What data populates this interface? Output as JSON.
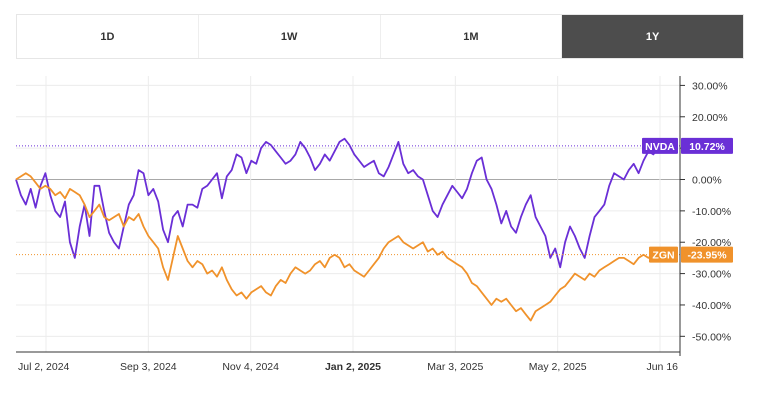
{
  "tabs": [
    {
      "label": "1D",
      "active": false
    },
    {
      "label": "1W",
      "active": false
    },
    {
      "label": "1M",
      "active": false
    },
    {
      "label": "1Y",
      "active": true
    }
  ],
  "chart_data": {
    "type": "line",
    "grid": true,
    "ylim": [
      -55,
      33
    ],
    "y_ticks": [
      "30.00%",
      "20.00%",
      "10.00%",
      "0.00%",
      "-10.00%",
      "-20.00%",
      "-30.00%",
      "-40.00%",
      "-50.00%"
    ],
    "x_ticks": [
      {
        "label": "Jul 2, 2024",
        "bold": false
      },
      {
        "label": "Sep 3, 2024",
        "bold": false
      },
      {
        "label": "Nov 4, 2024",
        "bold": false
      },
      {
        "label": "Jan 2, 2025",
        "bold": true
      },
      {
        "label": "Mar 3, 2025",
        "bold": false
      },
      {
        "label": "May 2, 2025",
        "bold": false
      },
      {
        "label": "Jun 16",
        "bold": false
      }
    ],
    "series": [
      {
        "name": "NVDA",
        "color": "#6a2fd6",
        "last_label": "10.72%",
        "values": [
          0,
          -5,
          -8,
          -3,
          -9,
          -2,
          2,
          -5,
          -10,
          -12,
          -7,
          -20,
          -25,
          -15,
          -8,
          -18,
          -2,
          -2,
          -10,
          -17,
          -20,
          -22,
          -15,
          -8,
          -5,
          3,
          2,
          -5,
          -3,
          -7,
          -16,
          -20,
          -12,
          -10,
          -15,
          -8,
          -8,
          -9,
          -3,
          -2,
          0,
          2,
          -6,
          1,
          3,
          8,
          7,
          2,
          6,
          5,
          10,
          12,
          11,
          9,
          7,
          5,
          6,
          8,
          12,
          10,
          7,
          3,
          5,
          8,
          6,
          9,
          12,
          13,
          11,
          8,
          6,
          4,
          5,
          6,
          2,
          1,
          4,
          8,
          12,
          5,
          2,
          3,
          1,
          0,
          -5,
          -10,
          -12,
          -8,
          -5,
          -2,
          -4,
          -6,
          -3,
          2,
          6,
          7,
          0,
          -3,
          -8,
          -14,
          -10,
          -15,
          -17,
          -12,
          -8,
          -5,
          -12,
          -15,
          -18,
          -25,
          -22,
          -28,
          -20,
          -15,
          -18,
          -22,
          -25,
          -18,
          -12,
          -10,
          -8,
          -2,
          2,
          1,
          0,
          3,
          5,
          2,
          6,
          9,
          8,
          10,
          9,
          10.72
        ]
      },
      {
        "name": "ZGN",
        "color": "#f0922b",
        "last_label": "-23.95%",
        "values": [
          0,
          1,
          2,
          1,
          -1,
          -3,
          -2,
          -3,
          -5,
          -4,
          -6,
          -3,
          -4,
          -5,
          -8,
          -12,
          -10,
          -8,
          -12,
          -13,
          -12,
          -11,
          -15,
          -12,
          -13,
          -11,
          -15,
          -18,
          -20,
          -22,
          -28,
          -32,
          -25,
          -18,
          -22,
          -26,
          -28,
          -26,
          -27,
          -30,
          -29,
          -31,
          -28,
          -32,
          -35,
          -37,
          -36,
          -38,
          -36,
          -35,
          -34,
          -36,
          -37,
          -34,
          -32,
          -33,
          -30,
          -28,
          -29,
          -30,
          -29,
          -27,
          -26,
          -28,
          -25,
          -24,
          -25,
          -28,
          -27,
          -29,
          -30,
          -31,
          -29,
          -27,
          -25,
          -22,
          -20,
          -19,
          -18,
          -20,
          -21,
          -22,
          -21,
          -20,
          -23,
          -22,
          -24,
          -23,
          -25,
          -26,
          -27,
          -28,
          -30,
          -33,
          -34,
          -36,
          -38,
          -40,
          -38,
          -39,
          -38,
          -40,
          -42,
          -41,
          -43,
          -45,
          -42,
          -41,
          -40,
          -39,
          -37,
          -35,
          -34,
          -32,
          -30,
          -31,
          -32,
          -30,
          -31,
          -29,
          -28,
          -27,
          -26,
          -25,
          -25,
          -26,
          -27,
          -25,
          -24,
          -25,
          -24,
          -25,
          -24,
          -23.95
        ]
      }
    ]
  }
}
